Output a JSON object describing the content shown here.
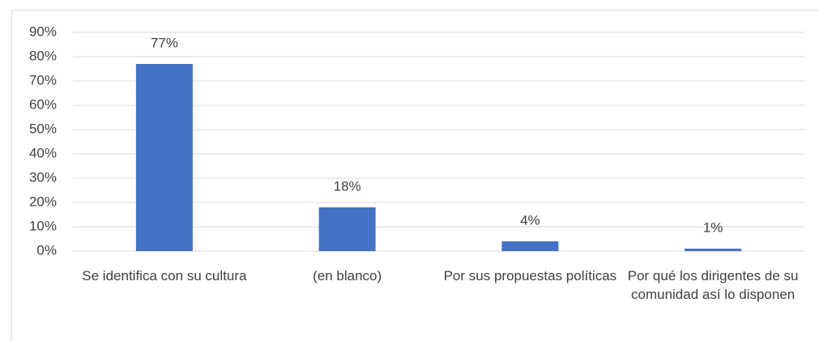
{
  "chart_data": {
    "type": "bar",
    "categories": [
      "Se identifica con su cultura",
      "(en blanco)",
      "Por sus propuestas políticas",
      "Por qué los dirigentes de su comunidad así lo disponen"
    ],
    "values": [
      77,
      18,
      4,
      1
    ],
    "value_labels": [
      "77%",
      "18%",
      "4%",
      "1%"
    ],
    "color": "#4472c4",
    "ylim": [
      0,
      90
    ],
    "yticks": [
      {
        "value": 0,
        "label": "0%"
      },
      {
        "value": 10,
        "label": "10%"
      },
      {
        "value": 20,
        "label": "20%"
      },
      {
        "value": 30,
        "label": "30%"
      },
      {
        "value": 40,
        "label": "40%"
      },
      {
        "value": 50,
        "label": "50%"
      },
      {
        "value": 60,
        "label": "60%"
      },
      {
        "value": 70,
        "label": "70%"
      },
      {
        "value": 80,
        "label": "80%"
      },
      {
        "value": 90,
        "label": "90%"
      }
    ],
    "grid": true
  }
}
